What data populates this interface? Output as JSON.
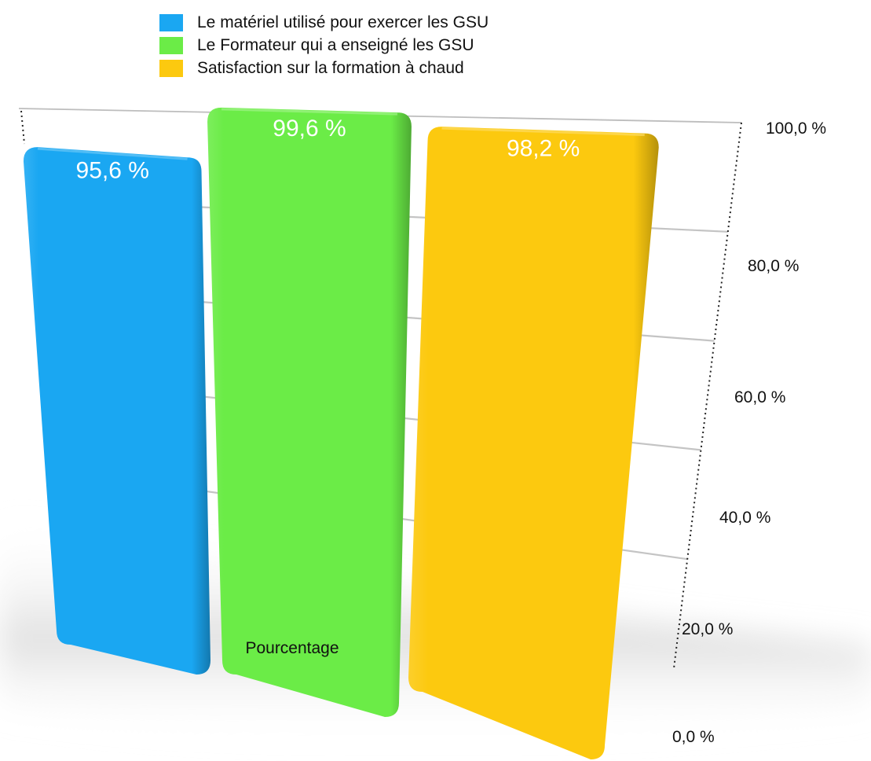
{
  "chart_data": {
    "type": "bar",
    "categories": [
      "Pourcentage"
    ],
    "series": [
      {
        "name": "Le matériel utilisé pour exercer les GSU",
        "values": [
          95.6
        ],
        "color": "#1aa7f2"
      },
      {
        "name": "Le Formateur qui a enseigné les GSU",
        "values": [
          99.6
        ],
        "color": "#6bec47"
      },
      {
        "name": "Satisfaction sur la formation à chaud",
        "values": [
          98.2
        ],
        "color": "#fcc90f"
      }
    ],
    "data_labels": [
      "95,6 %",
      "99,6 %",
      "98,2 %"
    ],
    "y_ticks": [
      "0,0 %",
      "20,0 %",
      "40,0 %",
      "60,0 %",
      "80,0 %",
      "100,0 %"
    ],
    "ylim": [
      0,
      100
    ],
    "y_axis_side": "right",
    "grid": true,
    "legend": "top-left",
    "style": "3d-perspective"
  }
}
